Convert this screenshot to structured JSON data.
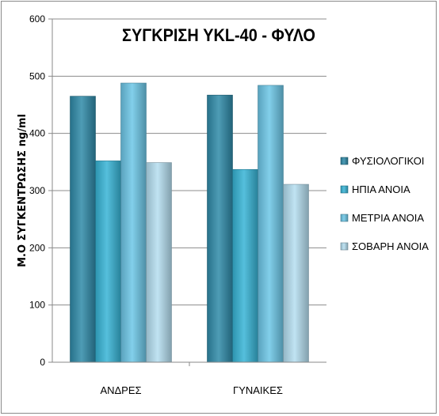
{
  "chart_data": {
    "type": "bar",
    "title": "ΣΥΓΚΡΙΣΗ YKL-40 - ΦΥΛΟ",
    "ylabel": "Μ.Ο ΣΥΓΚΕΝΤΡΩΣΗΣ ng/ml",
    "xlabel": "",
    "categories": [
      "ΑΝΔΡΕΣ",
      "ΓΥΝΑΙΚΕΣ"
    ],
    "ylim": [
      0,
      600
    ],
    "yticks": [
      0,
      100,
      200,
      300,
      400,
      500,
      600
    ],
    "grid": true,
    "legend_position": "right",
    "series": [
      {
        "name": "ΦΥΣΙΟΛΟΓΙΚΟΙ",
        "values": [
          465,
          467
        ],
        "color": "#2f8aa8"
      },
      {
        "name": "ΗΠΙΑ ΑΝΟΙΑ",
        "values": [
          352,
          337
        ],
        "color": "#37b4d6"
      },
      {
        "name": "ΜΕΤΡΙΑ ΑΝΟΙΑ",
        "values": [
          488,
          484
        ],
        "color": "#6cc6e6"
      },
      {
        "name": "ΣΟΒΑΡΗ ΑΝΟΙΑ",
        "values": [
          349,
          311
        ],
        "color": "#b5def0"
      }
    ]
  }
}
